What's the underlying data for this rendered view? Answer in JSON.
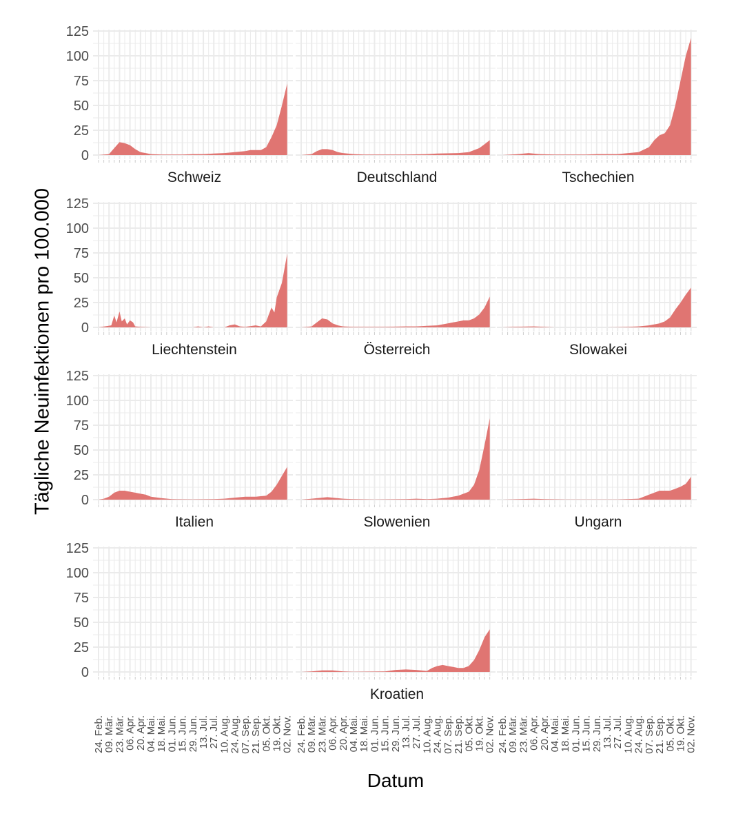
{
  "chart_data": {
    "type": "area",
    "ylabel": "Tägliche Neuinfektionen pro 100.000",
    "xlabel": "Datum",
    "ylim": [
      0,
      125
    ],
    "yticks": [
      0,
      25,
      50,
      75,
      100,
      125
    ],
    "x_start": "24. Feb.",
    "x_end": "06. Nov.",
    "xtick_labels": [
      "24. Feb.",
      "09. Mär.",
      "23. Mär.",
      "06. Apr.",
      "20. Apr.",
      "04. Mai.",
      "18. Mai.",
      "01. Jun.",
      "15. Jun.",
      "29. Jun.",
      "13. Jul.",
      "27. Jul.",
      "10. Aug.",
      "24. Aug.",
      "07. Sep.",
      "21. Sep.",
      "05. Okt.",
      "19. Okt.",
      "02. Nov."
    ],
    "fill_color": "#e07572",
    "grid_color": "#ebebeb",
    "panels": [
      {
        "name": "Schweiz",
        "points": [
          [
            "24. Feb.",
            0
          ],
          [
            "09. Mär.",
            1
          ],
          [
            "16. Mär.",
            7
          ],
          [
            "23. Mär.",
            13
          ],
          [
            "30. Mär.",
            12
          ],
          [
            "06. Apr.",
            10
          ],
          [
            "13. Apr.",
            6
          ],
          [
            "20. Apr.",
            3
          ],
          [
            "27. Apr.",
            2
          ],
          [
            "04. Mai.",
            1
          ],
          [
            "18. Mai.",
            0.5
          ],
          [
            "15. Jun.",
            0.5
          ],
          [
            "29. Jun.",
            1
          ],
          [
            "13. Jul.",
            1
          ],
          [
            "27. Jul.",
            1.5
          ],
          [
            "10. Aug.",
            2
          ],
          [
            "24. Aug.",
            3
          ],
          [
            "07. Sep.",
            4
          ],
          [
            "14. Sep.",
            5
          ],
          [
            "21. Sep.",
            5
          ],
          [
            "28. Sep.",
            5
          ],
          [
            "05. Okt.",
            8
          ],
          [
            "12. Okt.",
            18
          ],
          [
            "19. Okt.",
            30
          ],
          [
            "26. Okt.",
            50
          ],
          [
            "02. Nov.",
            72
          ]
        ]
      },
      {
        "name": "Deutschland",
        "points": [
          [
            "24. Feb.",
            0
          ],
          [
            "09. Mär.",
            1
          ],
          [
            "16. Mär.",
            4
          ],
          [
            "23. Mär.",
            6
          ],
          [
            "30. Mär.",
            6
          ],
          [
            "06. Apr.",
            5
          ],
          [
            "13. Apr.",
            3
          ],
          [
            "20. Apr.",
            2
          ],
          [
            "04. Mai.",
            1
          ],
          [
            "18. Mai.",
            0.5
          ],
          [
            "15. Jun.",
            0.5
          ],
          [
            "13. Jul.",
            0.5
          ],
          [
            "10. Aug.",
            1
          ],
          [
            "24. Aug.",
            1.5
          ],
          [
            "21. Sep.",
            2
          ],
          [
            "05. Okt.",
            3
          ],
          [
            "19. Okt.",
            7
          ],
          [
            "26. Okt.",
            11
          ],
          [
            "02. Nov.",
            15
          ]
        ]
      },
      {
        "name": "Tschechien",
        "points": [
          [
            "24. Feb.",
            0
          ],
          [
            "16. Mär.",
            1
          ],
          [
            "30. Mär.",
            2
          ],
          [
            "13. Apr.",
            1
          ],
          [
            "04. Mai.",
            0.5
          ],
          [
            "15. Jun.",
            0.5
          ],
          [
            "29. Jun.",
            1
          ],
          [
            "13. Jul.",
            1
          ],
          [
            "27. Jul.",
            1
          ],
          [
            "10. Aug.",
            2
          ],
          [
            "24. Aug.",
            3
          ],
          [
            "07. Sep.",
            8
          ],
          [
            "14. Sep.",
            15
          ],
          [
            "21. Sep.",
            20
          ],
          [
            "28. Sep.",
            22
          ],
          [
            "05. Okt.",
            30
          ],
          [
            "12. Okt.",
            50
          ],
          [
            "19. Okt.",
            75
          ],
          [
            "26. Okt.",
            100
          ],
          [
            "02. Nov.",
            118
          ]
        ]
      },
      {
        "name": "Liechtenstein",
        "points": [
          [
            "24. Feb.",
            0
          ],
          [
            "12. Mär.",
            2
          ],
          [
            "16. Mär.",
            12
          ],
          [
            "19. Mär.",
            5
          ],
          [
            "23. Mär.",
            16
          ],
          [
            "26. Mär.",
            6
          ],
          [
            "30. Mär.",
            9
          ],
          [
            "02. Apr.",
            3
          ],
          [
            "06. Apr.",
            7
          ],
          [
            "10. Apr.",
            5
          ],
          [
            "13. Apr.",
            1
          ],
          [
            "20. Apr.",
            0.5
          ],
          [
            "04. Mai.",
            0
          ],
          [
            "29. Jun.",
            0
          ],
          [
            "06. Jul.",
            1
          ],
          [
            "13. Jul.",
            0
          ],
          [
            "20. Jul.",
            1
          ],
          [
            "27. Jul.",
            0
          ],
          [
            "10. Aug.",
            0
          ],
          [
            "17. Aug.",
            2
          ],
          [
            "24. Aug.",
            3
          ],
          [
            "31. Aug.",
            1
          ],
          [
            "07. Sep.",
            0.5
          ],
          [
            "21. Sep.",
            2
          ],
          [
            "28. Sep.",
            1
          ],
          [
            "05. Okt.",
            6
          ],
          [
            "12. Okt.",
            20
          ],
          [
            "16. Okt.",
            15
          ],
          [
            "19. Okt.",
            30
          ],
          [
            "26. Okt.",
            45
          ],
          [
            "02. Nov.",
            74
          ]
        ]
      },
      {
        "name": "Österreich",
        "points": [
          [
            "24. Feb.",
            0
          ],
          [
            "09. Mär.",
            1
          ],
          [
            "16. Mär.",
            5
          ],
          [
            "23. Mär.",
            9
          ],
          [
            "30. Mär.",
            8
          ],
          [
            "06. Apr.",
            4
          ],
          [
            "13. Apr.",
            2
          ],
          [
            "20. Apr.",
            1
          ],
          [
            "04. Mai.",
            0.5
          ],
          [
            "15. Jun.",
            0.5
          ],
          [
            "13. Jul.",
            1
          ],
          [
            "27. Jul.",
            1
          ],
          [
            "10. Aug.",
            1.5
          ],
          [
            "24. Aug.",
            2
          ],
          [
            "07. Sep.",
            4
          ],
          [
            "21. Sep.",
            6
          ],
          [
            "28. Sep.",
            7
          ],
          [
            "05. Okt.",
            7
          ],
          [
            "12. Okt.",
            9
          ],
          [
            "19. Okt.",
            13
          ],
          [
            "26. Okt.",
            20
          ],
          [
            "02. Nov.",
            31
          ]
        ]
      },
      {
        "name": "Slowakei",
        "points": [
          [
            "24. Feb.",
            0
          ],
          [
            "09. Mär.",
            0.5
          ],
          [
            "06. Apr.",
            1
          ],
          [
            "20. Apr.",
            0.5
          ],
          [
            "04. Mai.",
            0
          ],
          [
            "13. Jul.",
            0
          ],
          [
            "10. Aug.",
            0.5
          ],
          [
            "24. Aug.",
            1
          ],
          [
            "07. Sep.",
            2
          ],
          [
            "21. Sep.",
            4
          ],
          [
            "28. Sep.",
            6
          ],
          [
            "05. Okt.",
            10
          ],
          [
            "12. Okt.",
            18
          ],
          [
            "19. Okt.",
            25
          ],
          [
            "26. Okt.",
            33
          ],
          [
            "02. Nov.",
            40
          ]
        ]
      },
      {
        "name": "Italien",
        "points": [
          [
            "24. Feb.",
            0
          ],
          [
            "02. Mär.",
            1
          ],
          [
            "09. Mär.",
            3
          ],
          [
            "16. Mär.",
            7
          ],
          [
            "23. Mär.",
            9
          ],
          [
            "30. Mär.",
            9
          ],
          [
            "06. Apr.",
            8
          ],
          [
            "13. Apr.",
            7
          ],
          [
            "20. Apr.",
            6
          ],
          [
            "27. Apr.",
            5
          ],
          [
            "04. Mai.",
            3
          ],
          [
            "18. Mai.",
            1.5
          ],
          [
            "01. Jun.",
            0.5
          ],
          [
            "29. Jun.",
            0.3
          ],
          [
            "27. Jul.",
            0.5
          ],
          [
            "10. Aug.",
            1
          ],
          [
            "24. Aug.",
            2
          ],
          [
            "07. Sep.",
            3
          ],
          [
            "21. Sep.",
            3
          ],
          [
            "05. Okt.",
            4
          ],
          [
            "12. Okt.",
            8
          ],
          [
            "19. Okt.",
            15
          ],
          [
            "26. Okt.",
            24
          ],
          [
            "02. Nov.",
            33
          ]
        ]
      },
      {
        "name": "Slowenien",
        "points": [
          [
            "24. Feb.",
            0
          ],
          [
            "09. Mär.",
            1
          ],
          [
            "23. Mär.",
            2
          ],
          [
            "30. Mär.",
            2.5
          ],
          [
            "06. Apr.",
            2
          ],
          [
            "20. Apr.",
            1
          ],
          [
            "04. Mai.",
            0.5
          ],
          [
            "01. Jun.",
            0.2
          ],
          [
            "13. Jul.",
            0.5
          ],
          [
            "27. Jul.",
            1
          ],
          [
            "10. Aug.",
            0.5
          ],
          [
            "24. Aug.",
            1
          ],
          [
            "07. Sep.",
            2
          ],
          [
            "21. Sep.",
            4
          ],
          [
            "05. Okt.",
            8
          ],
          [
            "12. Okt.",
            15
          ],
          [
            "19. Okt.",
            30
          ],
          [
            "26. Okt.",
            55
          ],
          [
            "02. Nov.",
            82
          ]
        ]
      },
      {
        "name": "Ungarn",
        "points": [
          [
            "24. Feb.",
            0
          ],
          [
            "06. Apr.",
            1
          ],
          [
            "20. Apr.",
            0.5
          ],
          [
            "18. Mai.",
            0.2
          ],
          [
            "27. Jul.",
            0.2
          ],
          [
            "24. Aug.",
            1
          ],
          [
            "31. Aug.",
            3
          ],
          [
            "07. Sep.",
            5
          ],
          [
            "14. Sep.",
            7
          ],
          [
            "21. Sep.",
            9
          ],
          [
            "05. Okt.",
            9
          ],
          [
            "12. Okt.",
            11
          ],
          [
            "19. Okt.",
            13
          ],
          [
            "26. Okt.",
            16
          ],
          [
            "02. Nov.",
            23
          ]
        ]
      },
      {
        "name": "",
        "points": []
      },
      {
        "name": "Kroatien",
        "points": [
          [
            "24. Feb.",
            0
          ],
          [
            "09. Mär.",
            0.5
          ],
          [
            "23. Mär.",
            1.5
          ],
          [
            "06. Apr.",
            1.5
          ],
          [
            "20. Apr.",
            0.5
          ],
          [
            "04. Mai.",
            0.2
          ],
          [
            "15. Jun.",
            0.5
          ],
          [
            "29. Jun.",
            2
          ],
          [
            "13. Jul.",
            2.5
          ],
          [
            "27. Jul.",
            2
          ],
          [
            "10. Aug.",
            1
          ],
          [
            "17. Aug.",
            4
          ],
          [
            "24. Aug.",
            6
          ],
          [
            "31. Aug.",
            7
          ],
          [
            "07. Sep.",
            6
          ],
          [
            "14. Sep.",
            5
          ],
          [
            "21. Sep.",
            4
          ],
          [
            "28. Sep.",
            4
          ],
          [
            "05. Okt.",
            6
          ],
          [
            "12. Okt.",
            12
          ],
          [
            "19. Okt.",
            22
          ],
          [
            "26. Okt.",
            35
          ],
          [
            "02. Nov.",
            43
          ]
        ]
      },
      {
        "name": "",
        "points": []
      }
    ]
  }
}
